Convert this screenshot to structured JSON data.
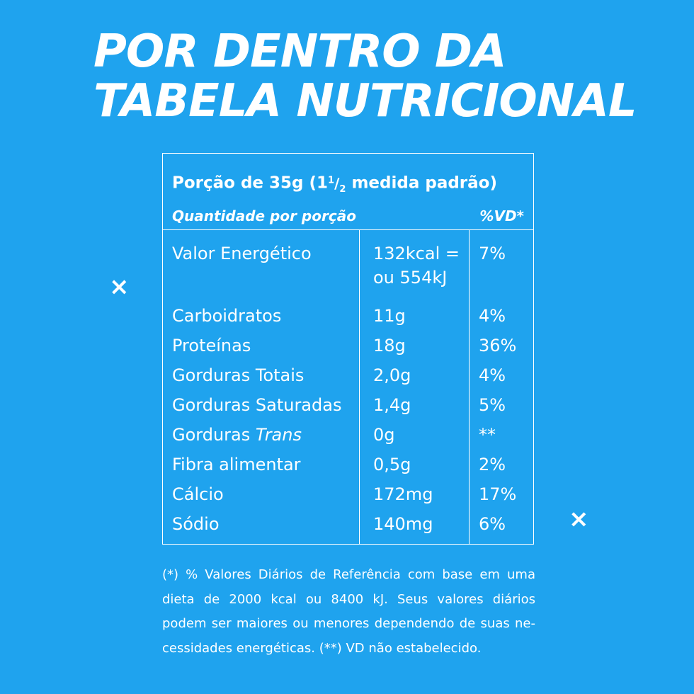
{
  "title": {
    "line1": "POR DENTRO DA",
    "line2": "TABELA NUTRICIONAL"
  },
  "table": {
    "portion_prefix": "Porção de 35g (1",
    "portion_frac_num": "1",
    "portion_frac_den": "2",
    "portion_suffix": " medida padrão)",
    "quantity_label": "Quantidade por porção",
    "vd_label": "%VD*",
    "rows": [
      {
        "name": "Valor Energético",
        "amount_line1": "132kcal =",
        "amount_line2": "ou 554kJ",
        "vd": "7%"
      },
      {
        "name": "Carboidratos",
        "amount": "11g",
        "vd": "4%"
      },
      {
        "name": "Proteínas",
        "amount": "18g",
        "vd": "36%"
      },
      {
        "name": "Gorduras Totais",
        "amount": "2,0g",
        "vd": "4%"
      },
      {
        "name": "Gorduras Saturadas",
        "amount": "1,4g",
        "vd": "5%"
      },
      {
        "name_prefix": "Gorduras ",
        "name_italic": "Trans",
        "amount": "0g",
        "vd": "**"
      },
      {
        "name": "Fibra alimentar",
        "amount": "0,5g",
        "vd": "2%"
      },
      {
        "name": "Cálcio",
        "amount": "172mg",
        "vd": "17%"
      },
      {
        "name": "Sódio",
        "amount": "140mg",
        "vd": "6%"
      }
    ]
  },
  "footnote": {
    "line1": "(*) % Valores Diários de Referência com base em uma",
    "line2": "dieta de 2000 kcal ou 8400 kJ. Seus valores diários",
    "line3": "podem ser maiores ou menores dependendo de suas ne-",
    "line4": "cessidades energéticas. (**) VD não estabelecido."
  },
  "decorations": {
    "mark": "×"
  }
}
